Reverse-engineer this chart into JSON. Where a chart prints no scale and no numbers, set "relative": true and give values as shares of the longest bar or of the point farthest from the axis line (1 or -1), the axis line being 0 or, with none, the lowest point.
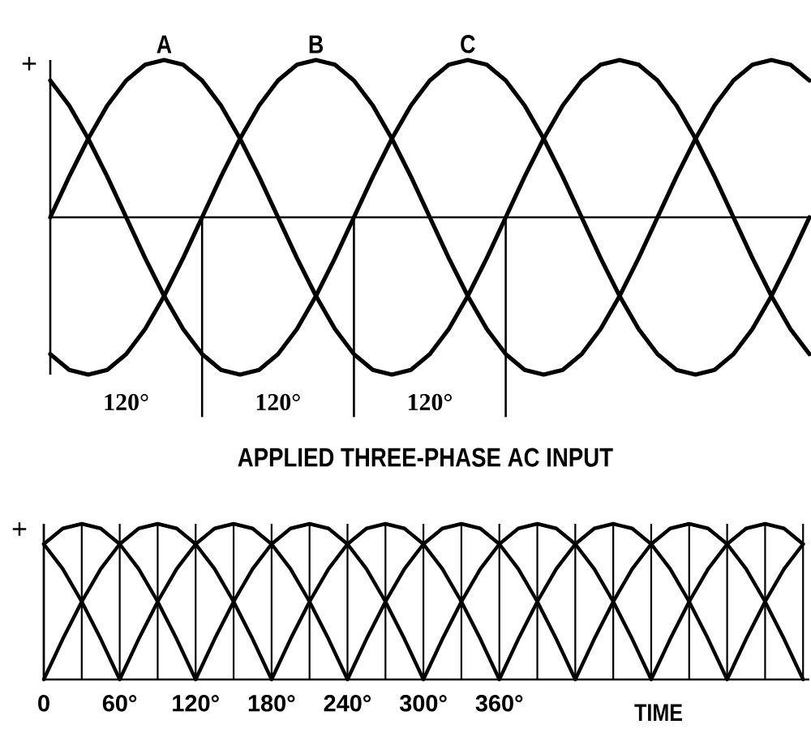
{
  "chart_data": [
    {
      "type": "line",
      "title": "APPLIED THREE-PHASE AC INPUT",
      "ylabel": "+",
      "relative": true,
      "marker": "none",
      "line_style": "solid",
      "categories": [
        null,
        null,
        null,
        null,
        null,
        null,
        null,
        null,
        null,
        null,
        null,
        null,
        null,
        null,
        null,
        null,
        null,
        null,
        null,
        null,
        null,
        null,
        null,
        null,
        null,
        null,
        null,
        null,
        null,
        null,
        null,
        null,
        null,
        null,
        null,
        null,
        null,
        null,
        null,
        null,
        null
      ],
      "series": [
        {
          "name": "A",
          "color": "#000000",
          "values": [
            0,
            0.26,
            0.5,
            0.71,
            0.87,
            0.97,
            1,
            0.97,
            0.87,
            0.71,
            0.5,
            0.26,
            0,
            -0.26,
            -0.5,
            -0.71,
            -0.87,
            -0.97,
            -1,
            -0.97,
            -0.87,
            -0.71,
            -0.5,
            -0.26,
            0,
            0.26,
            0.5,
            0.71,
            0.87,
            0.97,
            1,
            0.97,
            0.87,
            0.71,
            0.5,
            0.26,
            0,
            -0.26,
            -0.5,
            -0.71,
            -0.87
          ]
        },
        {
          "name": "B",
          "color": "#000000",
          "values": [
            -0.87,
            -0.97,
            -1,
            -0.97,
            -0.87,
            -0.71,
            -0.5,
            -0.26,
            0,
            0.26,
            0.5,
            0.71,
            0.87,
            0.97,
            1,
            0.97,
            0.87,
            0.71,
            0.5,
            0.26,
            0,
            -0.26,
            -0.5,
            -0.71,
            -0.87,
            -0.97,
            -1,
            -0.97,
            -0.87,
            -0.71,
            -0.5,
            -0.26,
            0,
            0.26,
            0.5,
            0.71,
            0.87,
            0.97,
            1,
            0.97,
            0.87
          ]
        },
        {
          "name": "C",
          "color": "#000000",
          "values": [
            0.87,
            0.71,
            0.5,
            0.26,
            0,
            -0.26,
            -0.5,
            -0.71,
            -0.87,
            -0.97,
            -1,
            -0.97,
            -0.87,
            -0.71,
            -0.5,
            -0.26,
            0,
            0.26,
            0.5,
            0.71,
            0.87,
            0.97,
            1,
            0.97,
            0.87,
            0.71,
            0.5,
            0.26,
            0,
            -0.26,
            -0.5,
            -0.71,
            -0.87,
            -0.97,
            -1,
            -0.97,
            -0.87,
            -0.71,
            -0.5,
            -0.26,
            0
          ]
        }
      ],
      "annotations": [
        "120°",
        "120°",
        "120°"
      ]
    },
    {
      "type": "line",
      "ylabel": "+",
      "xlabel": "TIME",
      "relative": true,
      "marker": "none",
      "line_style": "solid",
      "grid": "x",
      "x": [
        0,
        15,
        30,
        45,
        60,
        75,
        90,
        105,
        120,
        135,
        150,
        165,
        180,
        195,
        210,
        225,
        240,
        255,
        270,
        285,
        300,
        315,
        330,
        345,
        360,
        375,
        390,
        405,
        420,
        435,
        450,
        465,
        480,
        495,
        510,
        525,
        540,
        555,
        570,
        585,
        600
      ],
      "xlim": [
        0,
        605
      ],
      "xticks": [
        0,
        {
          "value": 30,
          "label": null
        },
        {
          "value": 60,
          "label": "60°"
        },
        {
          "value": 90,
          "label": null
        },
        {
          "value": 120,
          "label": "120°"
        },
        {
          "value": 150,
          "label": null
        },
        {
          "value": 180,
          "label": "180°"
        },
        {
          "value": 210,
          "label": null
        },
        {
          "value": 240,
          "label": "240°"
        },
        {
          "value": 270,
          "label": null
        },
        {
          "value": 300,
          "label": "300°"
        },
        {
          "value": 330,
          "label": null
        },
        {
          "value": 360,
          "label": "360°"
        },
        {
          "value": 390,
          "label": null
        },
        {
          "value": 420,
          "label": null
        },
        {
          "value": 450,
          "label": null
        },
        {
          "value": 480,
          "label": null
        },
        {
          "value": 510,
          "label": null
        },
        {
          "value": 540,
          "label": null
        },
        {
          "value": 570,
          "label": null
        },
        {
          "value": 600,
          "label": null
        }
      ],
      "series": [
        {
          "color": "#000000",
          "values": [
            0,
            0.26,
            0.5,
            0.71,
            0.87,
            0.97,
            1,
            0.97,
            0.87,
            0.71,
            0.5,
            0.26,
            0,
            0.26,
            0.5,
            0.71,
            0.87,
            0.97,
            1,
            0.97,
            0.87,
            0.71,
            0.5,
            0.26,
            0,
            0.26,
            0.5,
            0.71,
            0.87,
            0.97,
            1,
            0.97,
            0.87,
            0.71,
            0.5,
            0.26,
            0,
            0.26,
            0.5,
            0.71,
            0.87
          ]
        },
        {
          "color": "#000000",
          "values": [
            0.87,
            0.97,
            1,
            0.97,
            0.87,
            0.71,
            0.5,
            0.26,
            0,
            0.26,
            0.5,
            0.71,
            0.87,
            0.97,
            1,
            0.97,
            0.87,
            0.71,
            0.5,
            0.26,
            0,
            0.26,
            0.5,
            0.71,
            0.87,
            0.97,
            1,
            0.97,
            0.87,
            0.71,
            0.5,
            0.26,
            0,
            0.26,
            0.5,
            0.71,
            0.87,
            0.97,
            1,
            0.97,
            0.87
          ]
        },
        {
          "color": "#000000",
          "values": [
            0.87,
            0.71,
            0.5,
            0.26,
            0,
            0.26,
            0.5,
            0.71,
            0.87,
            0.97,
            1,
            0.97,
            0.87,
            0.71,
            0.5,
            0.26,
            0,
            0.26,
            0.5,
            0.71,
            0.87,
            0.97,
            1,
            0.97,
            0.87,
            0.71,
            0.5,
            0.26,
            0,
            0.26,
            0.5,
            0.71,
            0.87,
            0.97,
            1,
            0.97,
            0.87,
            0.71,
            0.5,
            0.26,
            0
          ]
        }
      ]
    }
  ]
}
